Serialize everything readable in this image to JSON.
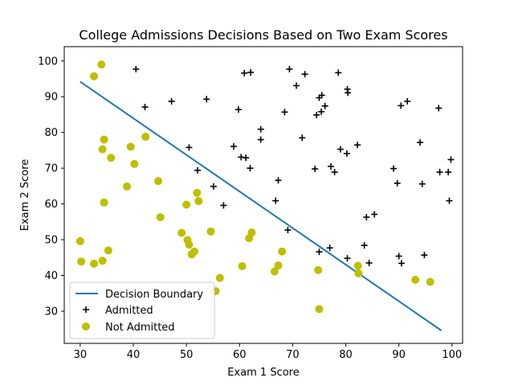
{
  "chart_data": {
    "type": "scatter",
    "title": "College Admissions Decisions Based on Two Exam Scores",
    "xlabel": "Exam 1 Score",
    "ylabel": "Exam 2 Score",
    "xlim": [
      27,
      102
    ],
    "ylim": [
      21,
      104
    ],
    "xticks": [
      30,
      40,
      50,
      60,
      70,
      80,
      90,
      100
    ],
    "yticks": [
      30,
      40,
      50,
      60,
      70,
      80,
      90,
      100
    ],
    "grid": false,
    "legend_position": "lower-left",
    "decision_boundary": {
      "name": "Decision Boundary",
      "color": "#1f77b4",
      "x": [
        30,
        98
      ],
      "y": [
        94.2,
        24.6
      ]
    },
    "series": [
      {
        "name": "Admitted",
        "marker": "plus",
        "color": "#000000",
        "points": [
          [
            40.5,
            97.7
          ],
          [
            42.2,
            87.1
          ],
          [
            47.2,
            88.7
          ],
          [
            50.5,
            75.8
          ],
          [
            52.1,
            69.4
          ],
          [
            53.8,
            89.3
          ],
          [
            55.1,
            64.9
          ],
          [
            57.0,
            59.6
          ],
          [
            58.9,
            76.1
          ],
          [
            59.8,
            86.4
          ],
          [
            60.3,
            73.1
          ],
          [
            60.9,
            96.6
          ],
          [
            61.2,
            72.9
          ],
          [
            62.0,
            70.0
          ],
          [
            62.1,
            96.8
          ],
          [
            64.0,
            80.9
          ],
          [
            64.0,
            78.0
          ],
          [
            66.8,
            60.9
          ],
          [
            67.3,
            66.6
          ],
          [
            68.5,
            85.7
          ],
          [
            69.1,
            52.7
          ],
          [
            69.4,
            97.7
          ],
          [
            70.7,
            93.1
          ],
          [
            71.8,
            78.5
          ],
          [
            72.3,
            96.3
          ],
          [
            74.2,
            69.8
          ],
          [
            74.5,
            84.9
          ],
          [
            75.0,
            89.7
          ],
          [
            75.0,
            46.6
          ],
          [
            75.4,
            85.8
          ],
          [
            75.5,
            90.4
          ],
          [
            76.1,
            87.4
          ],
          [
            77.0,
            47.7
          ],
          [
            77.2,
            70.5
          ],
          [
            77.9,
            68.9
          ],
          [
            78.6,
            96.7
          ],
          [
            79.0,
            75.3
          ],
          [
            80.2,
            74.1
          ],
          [
            80.3,
            92.1
          ],
          [
            80.4,
            91.1
          ],
          [
            80.3,
            44.8
          ],
          [
            82.2,
            76.5
          ],
          [
            83.5,
            48.4
          ],
          [
            83.9,
            56.3
          ],
          [
            84.4,
            43.5
          ],
          [
            85.4,
            57.1
          ],
          [
            89.0,
            69.9
          ],
          [
            89.7,
            65.8
          ],
          [
            90.0,
            45.4
          ],
          [
            90.4,
            87.5
          ],
          [
            90.5,
            43.4
          ],
          [
            91.6,
            88.7
          ],
          [
            94.0,
            77.2
          ],
          [
            94.4,
            65.6
          ],
          [
            94.8,
            45.7
          ],
          [
            97.5,
            86.8
          ],
          [
            97.7,
            68.9
          ],
          [
            99.3,
            68.9
          ],
          [
            99.5,
            60.9
          ],
          [
            99.8,
            72.4
          ]
        ]
      },
      {
        "name": "Not Admitted",
        "marker": "circle",
        "color": "#bfbf00",
        "points": [
          [
            34.0,
            99.0
          ],
          [
            32.6,
            95.7
          ],
          [
            34.5,
            78.0
          ],
          [
            34.2,
            75.3
          ],
          [
            35.8,
            72.9
          ],
          [
            39.5,
            76.0
          ],
          [
            40.2,
            71.2
          ],
          [
            42.3,
            78.8
          ],
          [
            38.8,
            64.9
          ],
          [
            34.5,
            60.4
          ],
          [
            44.7,
            66.4
          ],
          [
            45.1,
            56.3
          ],
          [
            49.1,
            51.9
          ],
          [
            50.0,
            59.8
          ],
          [
            50.2,
            49.9
          ],
          [
            50.5,
            48.6
          ],
          [
            51.0,
            45.9
          ],
          [
            51.5,
            46.7
          ],
          [
            52.0,
            63.1
          ],
          [
            52.3,
            60.8
          ],
          [
            54.6,
            52.3
          ],
          [
            55.5,
            35.6
          ],
          [
            56.3,
            39.3
          ],
          [
            60.5,
            42.6
          ],
          [
            61.8,
            50.4
          ],
          [
            62.3,
            52.0
          ],
          [
            66.6,
            41.1
          ],
          [
            67.3,
            42.8
          ],
          [
            68.0,
            46.7
          ],
          [
            30.0,
            49.6
          ],
          [
            30.2,
            43.9
          ],
          [
            32.6,
            43.3
          ],
          [
            34.2,
            44.1
          ],
          [
            35.3,
            47.0
          ],
          [
            74.8,
            41.5
          ],
          [
            75.0,
            30.6
          ],
          [
            82.3,
            42.7
          ],
          [
            82.4,
            40.6
          ],
          [
            93.1,
            38.8
          ],
          [
            95.9,
            38.2
          ]
        ]
      }
    ]
  }
}
